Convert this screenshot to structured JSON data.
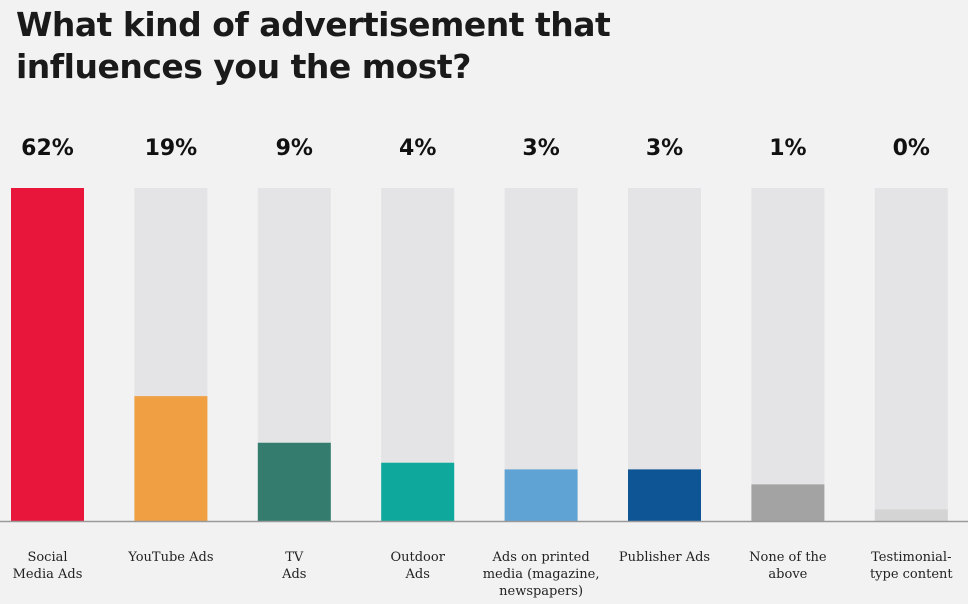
{
  "title_lines": [
    "What kind of advertisement that",
    "influences you the most?"
  ],
  "chart_data": {
    "type": "bar",
    "title": "What kind of advertisement that influences you the most?",
    "categories": [
      "Social Media Ads",
      "YouTube Ads",
      "TV Ads",
      "Outdoor Ads",
      "Ads on printed media (magazine, newspapers)",
      "Publisher Ads",
      "None of the above",
      "Testimonial-type content"
    ],
    "category_label_lines": [
      [
        "Social",
        "Media Ads"
      ],
      [
        "YouTube Ads"
      ],
      [
        "TV",
        "Ads"
      ],
      [
        "Outdoor",
        "Ads"
      ],
      [
        "Ads on printed",
        "media (magazine,",
        "newspapers)"
      ],
      [
        "Publisher Ads"
      ],
      [
        "None of the",
        "above"
      ],
      [
        "Testimonial-",
        "type content"
      ]
    ],
    "values": [
      62,
      19,
      9,
      4,
      3,
      3,
      1,
      0
    ],
    "value_labels": [
      "62%",
      "19%",
      "9%",
      "4%",
      "3%",
      "3%",
      "1%",
      "0%"
    ],
    "bar_fill_fractions": [
      1.0,
      0.375,
      0.235,
      0.175,
      0.155,
      0.155,
      0.11,
      0.035
    ],
    "colors": [
      "#e8163a",
      "#f09f43",
      "#337c6e",
      "#0ea89d",
      "#5ea3d4",
      "#0e5595",
      "#a3a3a3",
      "#d4d4d4"
    ],
    "track_color": "#e4e4e6",
    "baseline_color": "#9a9a9a",
    "grid": false,
    "legend": "none"
  }
}
